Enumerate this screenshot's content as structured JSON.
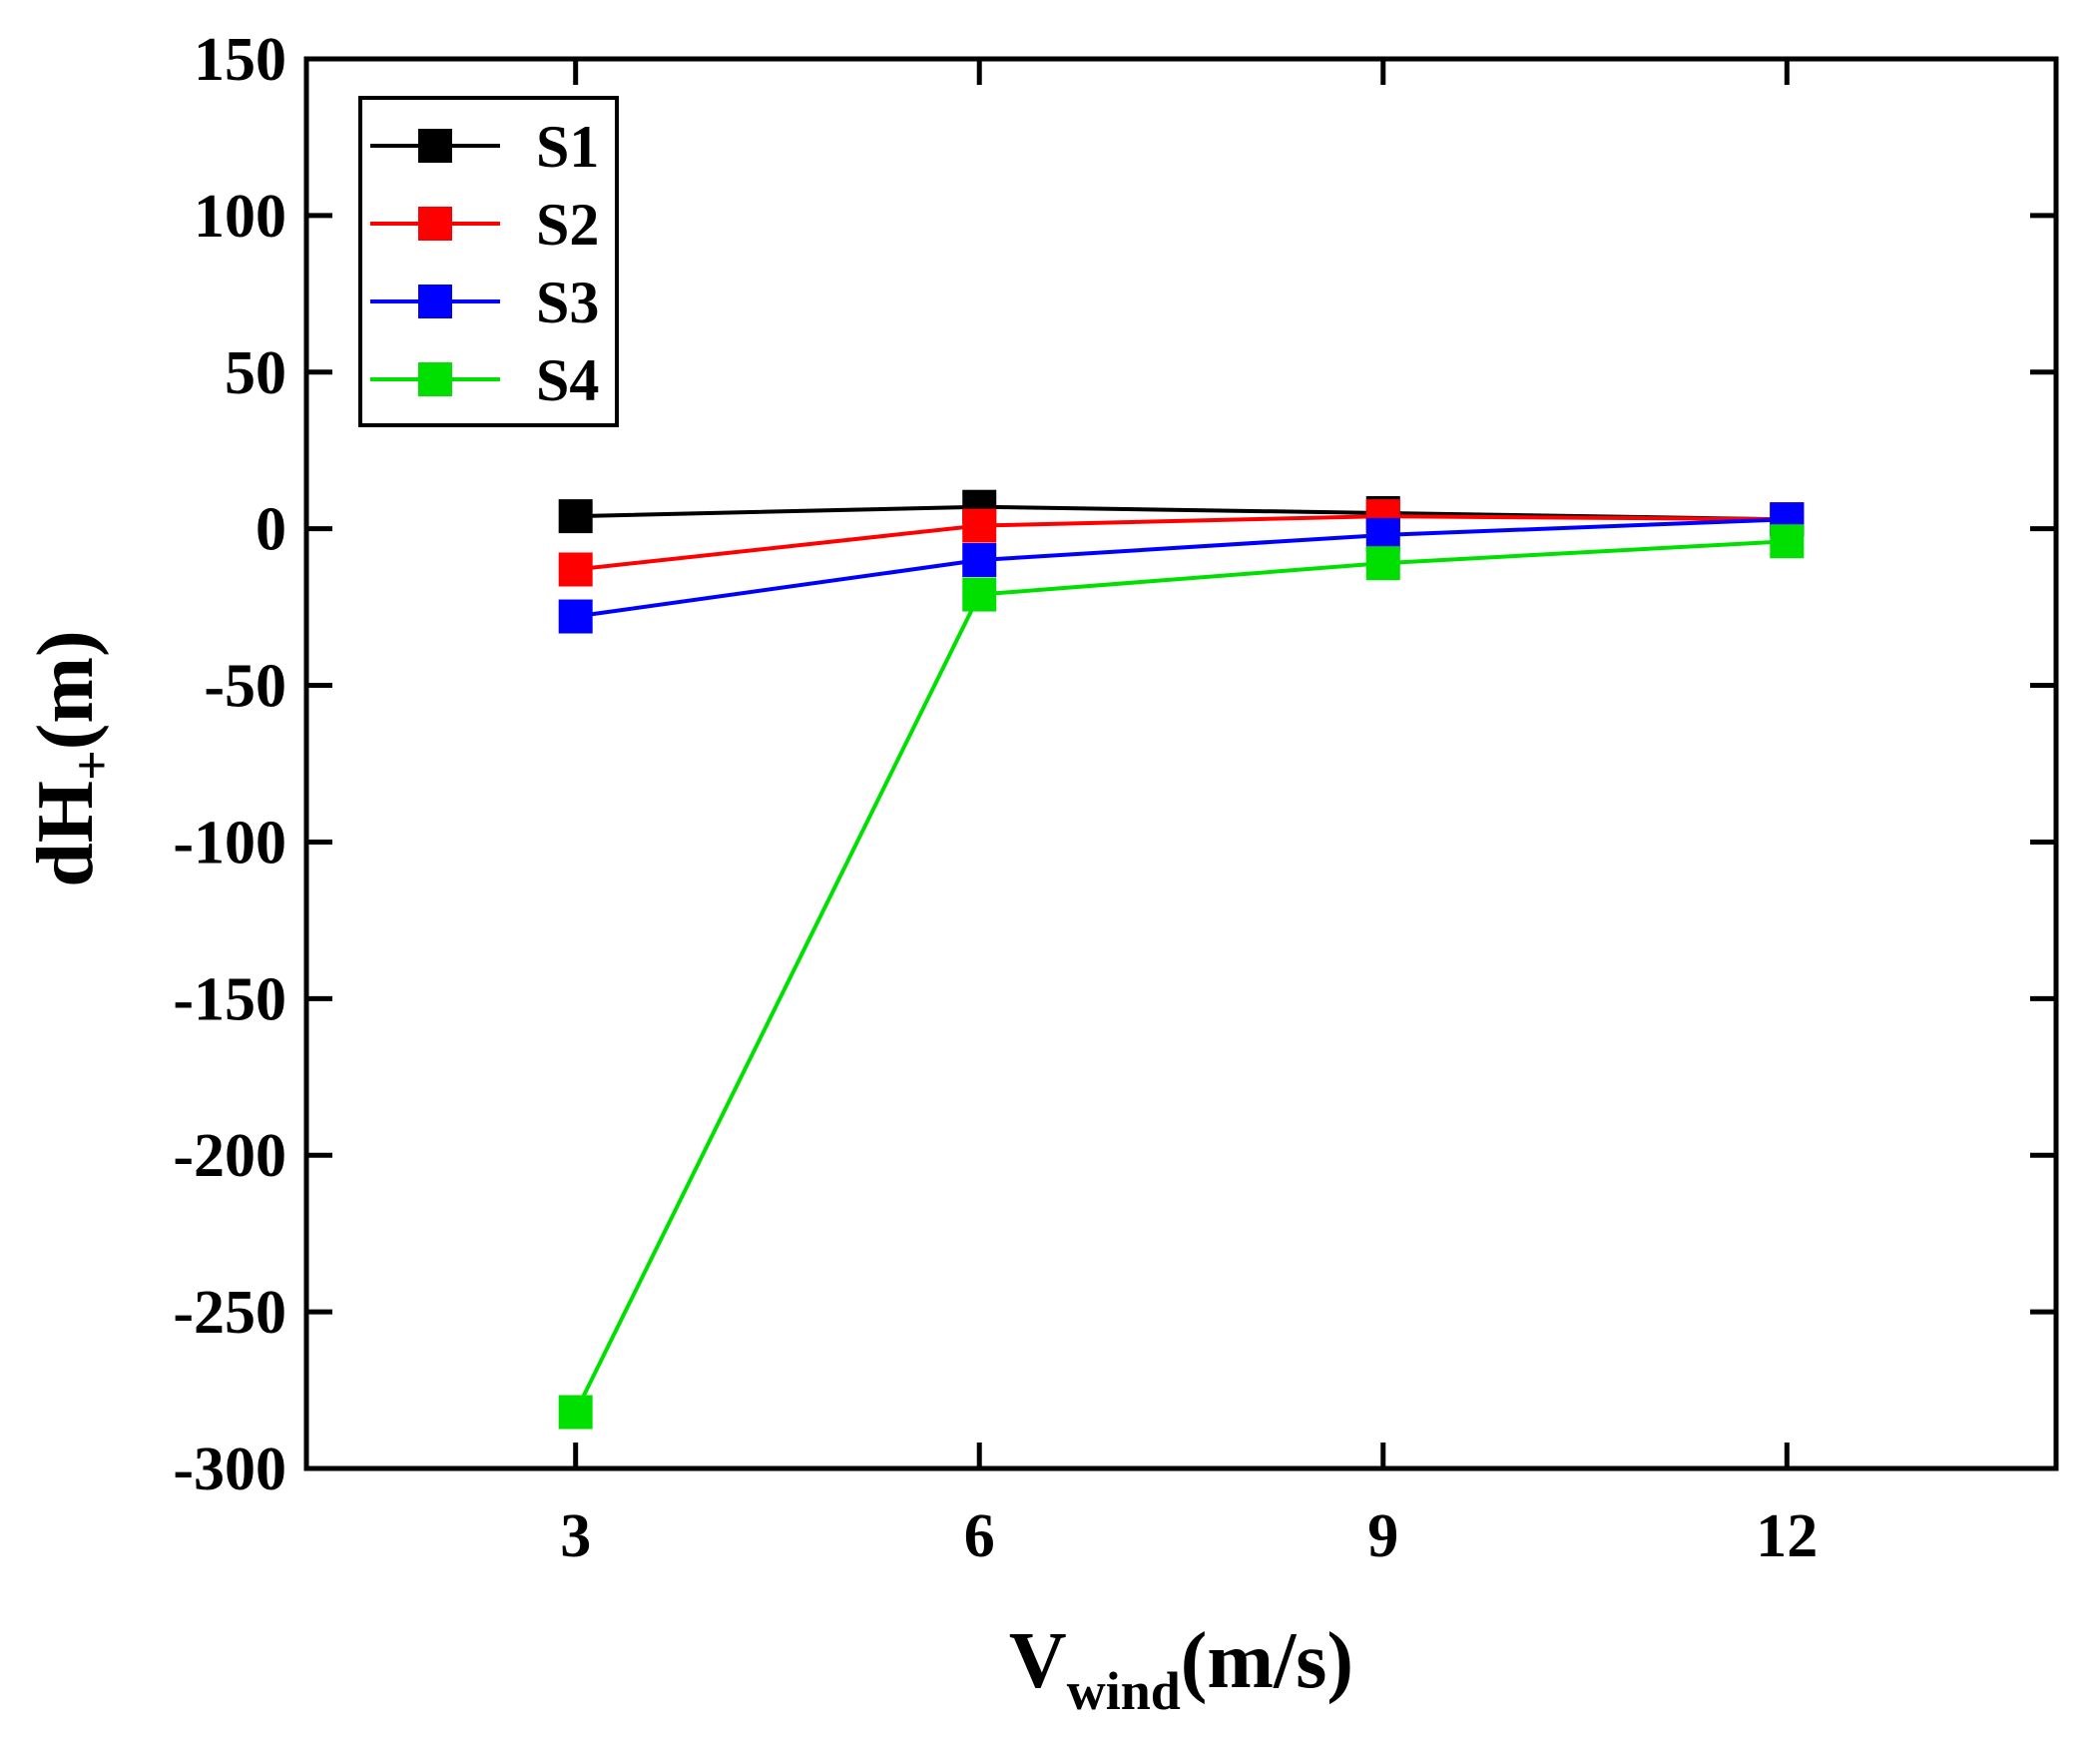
{
  "chart_data": {
    "type": "line",
    "title": "",
    "x": [
      3,
      6,
      9,
      12
    ],
    "xlim": [
      1,
      14
    ],
    "ylim": [
      -300,
      150
    ],
    "xticks": [
      3,
      6,
      9,
      12
    ],
    "yticks": [
      150,
      100,
      50,
      0,
      -50,
      -100,
      -150,
      -200,
      -250,
      -300
    ],
    "xlabel": {
      "main": "V",
      "sub": "wind",
      "rest": "(m/s)"
    },
    "ylabel": {
      "main": "dH",
      "sub": "+",
      "rest": "(m)"
    },
    "legend_position": "top-left",
    "grid": false,
    "series": [
      {
        "name": "S1",
        "color": "#000000",
        "values": [
          4,
          7,
          5,
          3
        ]
      },
      {
        "name": "S2",
        "color": "#ff0000",
        "values": [
          -13,
          1,
          4,
          3
        ]
      },
      {
        "name": "S3",
        "color": "#0000ff",
        "values": [
          -28,
          -10,
          -2,
          3
        ]
      },
      {
        "name": "S4",
        "color": "#00e000",
        "values": [
          -282,
          -21,
          -11,
          -4
        ]
      }
    ]
  }
}
